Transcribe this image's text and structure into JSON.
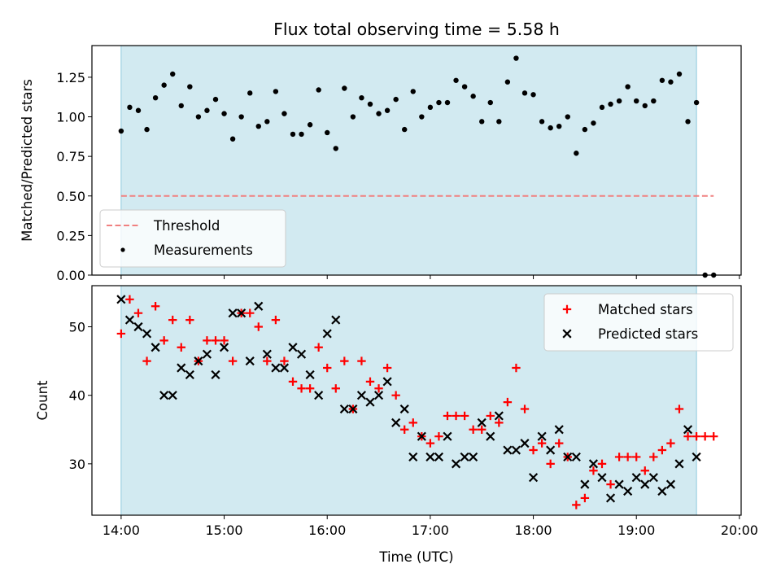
{
  "figure": {
    "title": "Flux total observing time = 5.58 h",
    "xlabel": "Time (UTC)",
    "shade_color": "#add8e6",
    "shade_range": [
      "14:00",
      "19:35"
    ]
  },
  "chart_data": [
    {
      "type": "scatter",
      "ylabel": "Matched/Predicted stars",
      "ylim": [
        0,
        1.45
      ],
      "yticks": [
        "0.00",
        "0.25",
        "0.50",
        "0.75",
        "1.00",
        "1.25"
      ],
      "xlim": [
        "13:43",
        "20:01"
      ],
      "xticks": [
        "14:00",
        "15:00",
        "16:00",
        "17:00",
        "18:00",
        "19:00",
        "20:00"
      ],
      "show_x_tick_labels": false,
      "threshold": {
        "name": "Threshold",
        "value": 0.5,
        "x_range": [
          "14:00",
          "19:45"
        ],
        "color": "#f08080"
      },
      "legend": {
        "position": "lower-left",
        "entries": [
          "Threshold",
          "Measurements"
        ]
      },
      "series": [
        {
          "name": "Measurements",
          "color": "#000000",
          "marker": "dot",
          "x": [
            "14:00",
            "14:05",
            "14:10",
            "14:15",
            "14:20",
            "14:25",
            "14:30",
            "14:35",
            "14:40",
            "14:45",
            "14:50",
            "14:55",
            "15:00",
            "15:05",
            "15:10",
            "15:15",
            "15:20",
            "15:25",
            "15:30",
            "15:35",
            "15:40",
            "15:45",
            "15:50",
            "15:55",
            "16:00",
            "16:05",
            "16:10",
            "16:15",
            "16:20",
            "16:25",
            "16:30",
            "16:35",
            "16:40",
            "16:45",
            "16:50",
            "16:55",
            "17:00",
            "17:05",
            "17:10",
            "17:15",
            "17:20",
            "17:25",
            "17:30",
            "17:35",
            "17:40",
            "17:45",
            "17:50",
            "17:55",
            "18:00",
            "18:05",
            "18:10",
            "18:15",
            "18:20",
            "18:25",
            "18:30",
            "18:35",
            "18:40",
            "18:45",
            "18:50",
            "18:55",
            "19:00",
            "19:05",
            "19:10",
            "19:15",
            "19:20",
            "19:25",
            "19:30",
            "19:35",
            "19:40",
            "19:45"
          ],
          "y": [
            0.91,
            1.06,
            1.04,
            0.92,
            1.12,
            1.2,
            1.27,
            1.07,
            1.19,
            1.0,
            1.04,
            1.11,
            1.02,
            0.86,
            1.0,
            1.15,
            0.94,
            0.97,
            1.16,
            1.02,
            0.89,
            0.89,
            0.95,
            1.17,
            0.9,
            0.8,
            1.18,
            1.0,
            1.12,
            1.08,
            1.02,
            1.04,
            1.11,
            0.92,
            1.16,
            1.0,
            1.06,
            1.09,
            1.09,
            1.23,
            1.19,
            1.13,
            0.97,
            1.09,
            0.97,
            1.22,
            1.37,
            1.15,
            1.14,
            0.97,
            0.93,
            0.94,
            1.0,
            0.77,
            0.92,
            0.96,
            1.06,
            1.08,
            1.1,
            1.19,
            1.1,
            1.07,
            1.1,
            1.23,
            1.22,
            1.27,
            0.97,
            1.09,
            0.0,
            0.0
          ]
        }
      ]
    },
    {
      "type": "scatter",
      "ylabel": "Count",
      "ylim": [
        22.5,
        56
      ],
      "yticks": [
        "30",
        "40",
        "50"
      ],
      "xlim": [
        "13:43",
        "20:01"
      ],
      "xticks": [
        "14:00",
        "15:00",
        "16:00",
        "17:00",
        "18:00",
        "19:00",
        "20:00"
      ],
      "show_x_tick_labels": true,
      "legend": {
        "position": "upper-right",
        "entries": [
          "Matched stars",
          "Predicted stars"
        ]
      },
      "series": [
        {
          "name": "Matched stars",
          "color": "#ff0000",
          "marker": "plus",
          "x": [
            "14:00",
            "14:05",
            "14:10",
            "14:15",
            "14:20",
            "14:25",
            "14:30",
            "14:35",
            "14:40",
            "14:45",
            "14:50",
            "14:55",
            "15:00",
            "15:05",
            "15:10",
            "15:15",
            "15:20",
            "15:25",
            "15:30",
            "15:35",
            "15:40",
            "15:45",
            "15:50",
            "15:55",
            "16:00",
            "16:05",
            "16:10",
            "16:15",
            "16:20",
            "16:25",
            "16:30",
            "16:35",
            "16:40",
            "16:45",
            "16:50",
            "16:55",
            "17:00",
            "17:05",
            "17:10",
            "17:15",
            "17:20",
            "17:25",
            "17:30",
            "17:35",
            "17:40",
            "17:45",
            "17:50",
            "17:55",
            "18:00",
            "18:05",
            "18:10",
            "18:15",
            "18:20",
            "18:25",
            "18:30",
            "18:35",
            "18:40",
            "18:45",
            "18:50",
            "18:55",
            "19:00",
            "19:05",
            "19:10",
            "19:15",
            "19:20",
            "19:25",
            "19:30",
            "19:35",
            "19:40",
            "19:45"
          ],
          "y": [
            49,
            54,
            52,
            45,
            53,
            48,
            51,
            47,
            51,
            45,
            48,
            48,
            48,
            45,
            52,
            52,
            50,
            45,
            51,
            45,
            42,
            41,
            41,
            47,
            44,
            41,
            45,
            38,
            45,
            42,
            41,
            44,
            40,
            35,
            36,
            34,
            33,
            34,
            37,
            37,
            37,
            35,
            35,
            37,
            36,
            39,
            44,
            38,
            32,
            33,
            30,
            33,
            31,
            24,
            25,
            29,
            30,
            27,
            31,
            31,
            31,
            29,
            31,
            32,
            33,
            38,
            34,
            34,
            34,
            34
          ]
        },
        {
          "name": "Predicted stars",
          "color": "#000000",
          "marker": "x",
          "x": [
            "14:00",
            "14:05",
            "14:10",
            "14:15",
            "14:20",
            "14:25",
            "14:30",
            "14:35",
            "14:40",
            "14:45",
            "14:50",
            "14:55",
            "15:00",
            "15:05",
            "15:10",
            "15:15",
            "15:20",
            "15:25",
            "15:30",
            "15:35",
            "15:40",
            "15:45",
            "15:50",
            "15:55",
            "16:00",
            "16:05",
            "16:10",
            "16:15",
            "16:20",
            "16:25",
            "16:30",
            "16:35",
            "16:40",
            "16:45",
            "16:50",
            "16:55",
            "17:00",
            "17:05",
            "17:10",
            "17:15",
            "17:20",
            "17:25",
            "17:30",
            "17:35",
            "17:40",
            "17:45",
            "17:50",
            "17:55",
            "18:00",
            "18:05",
            "18:10",
            "18:15",
            "18:20",
            "18:25",
            "18:30",
            "18:35",
            "18:40",
            "18:45",
            "18:50",
            "18:55",
            "19:00",
            "19:05",
            "19:10",
            "19:15",
            "19:20",
            "19:25",
            "19:30",
            "19:35",
            "19:40"
          ],
          "y": [
            54,
            51,
            50,
            49,
            47,
            40,
            40,
            44,
            43,
            45,
            46,
            43,
            47,
            52,
            52,
            45,
            53,
            46,
            44,
            44,
            47,
            46,
            43,
            40,
            49,
            51,
            38,
            38,
            40,
            39,
            40,
            42,
            36,
            38,
            31,
            34,
            31,
            31,
            34,
            30,
            31,
            31,
            36,
            34,
            37,
            32,
            32,
            33,
            28,
            34,
            32,
            35,
            31,
            31,
            27,
            30,
            28,
            25,
            27,
            26,
            28,
            27,
            28,
            26,
            27,
            30,
            35,
            31,
            null
          ]
        }
      ]
    }
  ]
}
